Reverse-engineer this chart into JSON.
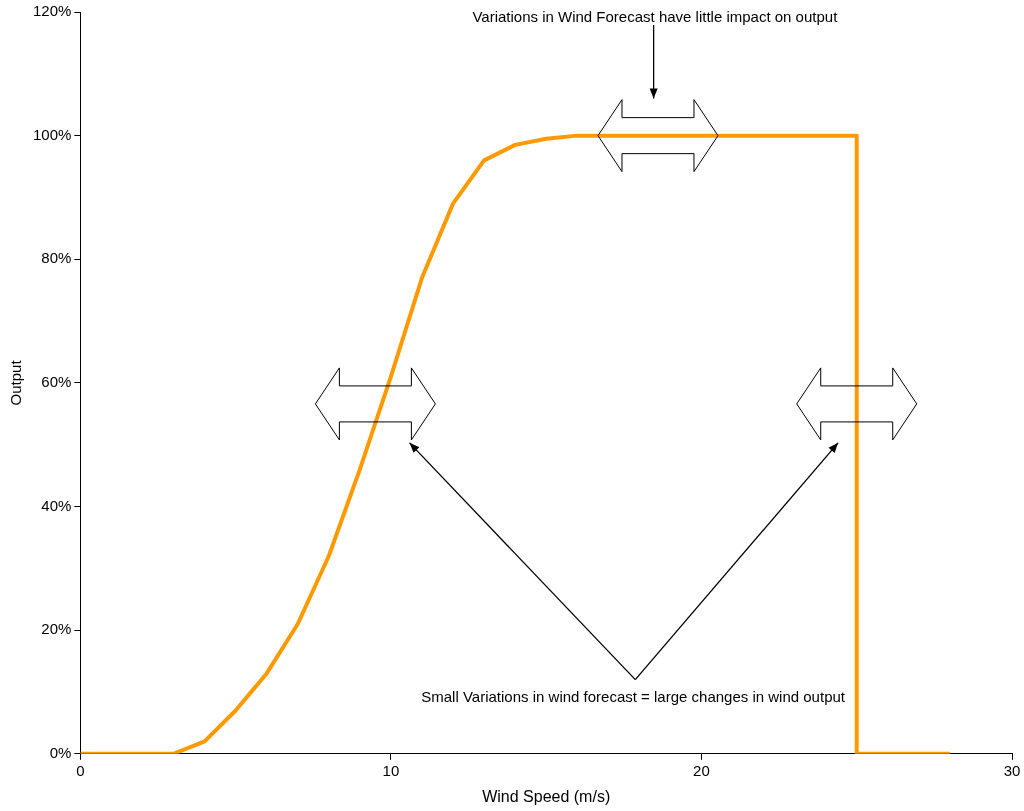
{
  "chart_data": {
    "type": "line",
    "xlabel": "Wind Speed (m/s)",
    "ylabel": "Output",
    "x": [
      0,
      1,
      2,
      3,
      4,
      5,
      6,
      7,
      8,
      9,
      10,
      11,
      12,
      13,
      14,
      15,
      16,
      17,
      18,
      19,
      20,
      21,
      22,
      23,
      24,
      25,
      25,
      26,
      27,
      28
    ],
    "series": [
      {
        "color": "#ff9900",
        "values": [
          0,
          0,
          0,
          0,
          2,
          7,
          13,
          21,
          32,
          46,
          61,
          77,
          89,
          96,
          98.5,
          99.5,
          100,
          100,
          100,
          100,
          100,
          100,
          100,
          100,
          100,
          100,
          0,
          0,
          0,
          0
        ]
      }
    ],
    "xlim": [
      0,
      30
    ],
    "xticks": [
      0,
      10,
      20,
      30
    ],
    "ylim": [
      0,
      120
    ],
    "yticks": [
      {
        "value": 0,
        "label": "0%"
      },
      {
        "value": 20,
        "label": "20%"
      },
      {
        "value": 40,
        "label": "40%"
      },
      {
        "value": 60,
        "label": "60%"
      },
      {
        "value": 80,
        "label": "80%"
      },
      {
        "value": 100,
        "label": "100%"
      },
      {
        "value": 120,
        "label": "120%"
      }
    ],
    "grid": false,
    "legend": false,
    "marker": "none",
    "line_style": "solid",
    "annotations": [
      "Variations in Wind Forecast have little impact on output",
      "Small Variations in wind forecast = large changes in wind output"
    ]
  }
}
